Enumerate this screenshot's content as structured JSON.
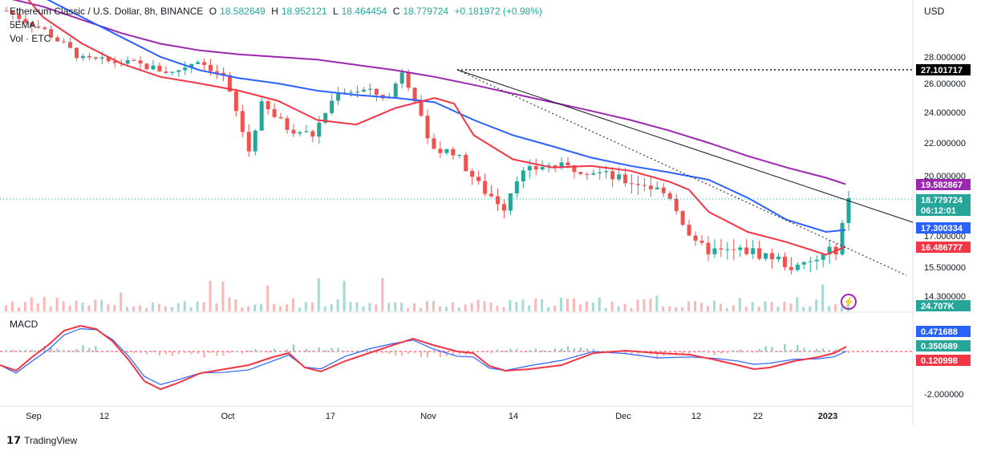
{
  "header": {
    "symbol": "Ethereum Classic / U.S. Dollar, 8h, BINANCE",
    "open_label": "O",
    "open": "18.582649",
    "high_label": "H",
    "high": "18.952121",
    "low_label": "L",
    "low": "18.464454",
    "close_label": "C",
    "close": "18.779724",
    "change": "+0.181972 (+0.98%)",
    "ema_label": "5EMA",
    "vol_label": "Vol · ETC",
    "currency": "USD"
  },
  "macd_label": "MACD",
  "branding": "TradingView",
  "chart_data": {
    "type": "candlestick",
    "title": "Ethereum Classic / U.S. Dollar, 8h, BINANCE",
    "x_ticks": [
      "Sep",
      "12",
      "Oct",
      "17",
      "Nov",
      "14",
      "Dec",
      "12",
      "22",
      "2023"
    ],
    "y_ticks": [
      "28.000000",
      "26.000000",
      "24.000000",
      "22.000000",
      "20.000000",
      "17.000000",
      "15.500000",
      "14.300000"
    ],
    "price_tags": [
      {
        "label": "27.101717",
        "value": 27.101717,
        "color": "#000000"
      },
      {
        "label": "19.582867",
        "value": 19.582867,
        "color": "#9c27b0"
      },
      {
        "label": "18.779724",
        "value": 18.779724,
        "color": "#26a69a"
      },
      {
        "label": "06:12:01",
        "value": 18.779724,
        "color": "#26a69a"
      },
      {
        "label": "17.300334",
        "value": 17.300334,
        "color": "#2962ff"
      },
      {
        "label": "16.486777",
        "value": 16.486777,
        "color": "#f23645"
      },
      {
        "label": "24.707K",
        "value": null,
        "color": "#26a69a"
      }
    ],
    "ema_series": [
      {
        "color": "#9c27b0",
        "points": [
          [
            0,
            32.5
          ],
          [
            4,
            31.8
          ],
          [
            8,
            30.8
          ],
          [
            12,
            29.8
          ],
          [
            16,
            29.0
          ],
          [
            20,
            28.5
          ],
          [
            24,
            28.2
          ],
          [
            28,
            28.0
          ],
          [
            32,
            27.8
          ],
          [
            36,
            27.4
          ],
          [
            40,
            27.0
          ],
          [
            44,
            26.5
          ],
          [
            48,
            25.9
          ],
          [
            52,
            25.3
          ],
          [
            56,
            24.7
          ],
          [
            60,
            24.1
          ],
          [
            64,
            23.5
          ],
          [
            68,
            22.8
          ],
          [
            72,
            22.0
          ],
          [
            76,
            21.2
          ],
          [
            80,
            20.5
          ],
          [
            84,
            19.9
          ],
          [
            86,
            19.58
          ]
        ]
      },
      {
        "color": "#2962ff",
        "points": [
          [
            0,
            34.0
          ],
          [
            4,
            32.5
          ],
          [
            8,
            31.0
          ],
          [
            12,
            29.5
          ],
          [
            16,
            28.0
          ],
          [
            20,
            27.0
          ],
          [
            24,
            26.4
          ],
          [
            28,
            26.0
          ],
          [
            32,
            25.5
          ],
          [
            36,
            25.2
          ],
          [
            40,
            25.0
          ],
          [
            44,
            24.7
          ],
          [
            48,
            23.5
          ],
          [
            52,
            22.5
          ],
          [
            56,
            21.8
          ],
          [
            60,
            21.1
          ],
          [
            64,
            20.6
          ],
          [
            68,
            20.2
          ],
          [
            72,
            19.8
          ],
          [
            76,
            18.9
          ],
          [
            80,
            17.8
          ],
          [
            84,
            17.2
          ],
          [
            86,
            17.3
          ]
        ]
      },
      {
        "color": "#f23645",
        "points": [
          [
            0,
            34.5
          ],
          [
            4,
            31.0
          ],
          [
            8,
            29.0
          ],
          [
            12,
            27.5
          ],
          [
            16,
            26.5
          ],
          [
            20,
            26.0
          ],
          [
            24,
            25.5
          ],
          [
            28,
            24.8
          ],
          [
            32,
            23.5
          ],
          [
            36,
            23.2
          ],
          [
            40,
            24.3
          ],
          [
            44,
            25.0
          ],
          [
            46,
            24.6
          ],
          [
            48,
            22.5
          ],
          [
            52,
            21.0
          ],
          [
            56,
            20.5
          ],
          [
            60,
            20.6
          ],
          [
            64,
            20.3
          ],
          [
            68,
            19.7
          ],
          [
            70,
            19.3
          ],
          [
            72,
            18.2
          ],
          [
            76,
            17.2
          ],
          [
            80,
            16.7
          ],
          [
            84,
            16.1
          ],
          [
            86,
            16.49
          ]
        ]
      }
    ],
    "macd_ticks": [
      "-2.000000"
    ],
    "macd_tags": [
      {
        "label": "0.471688",
        "color": "#2962ff"
      },
      {
        "label": "0.350689",
        "color": "#26a69a"
      },
      {
        "label": "0.120998",
        "color": "#f23645"
      }
    ]
  }
}
